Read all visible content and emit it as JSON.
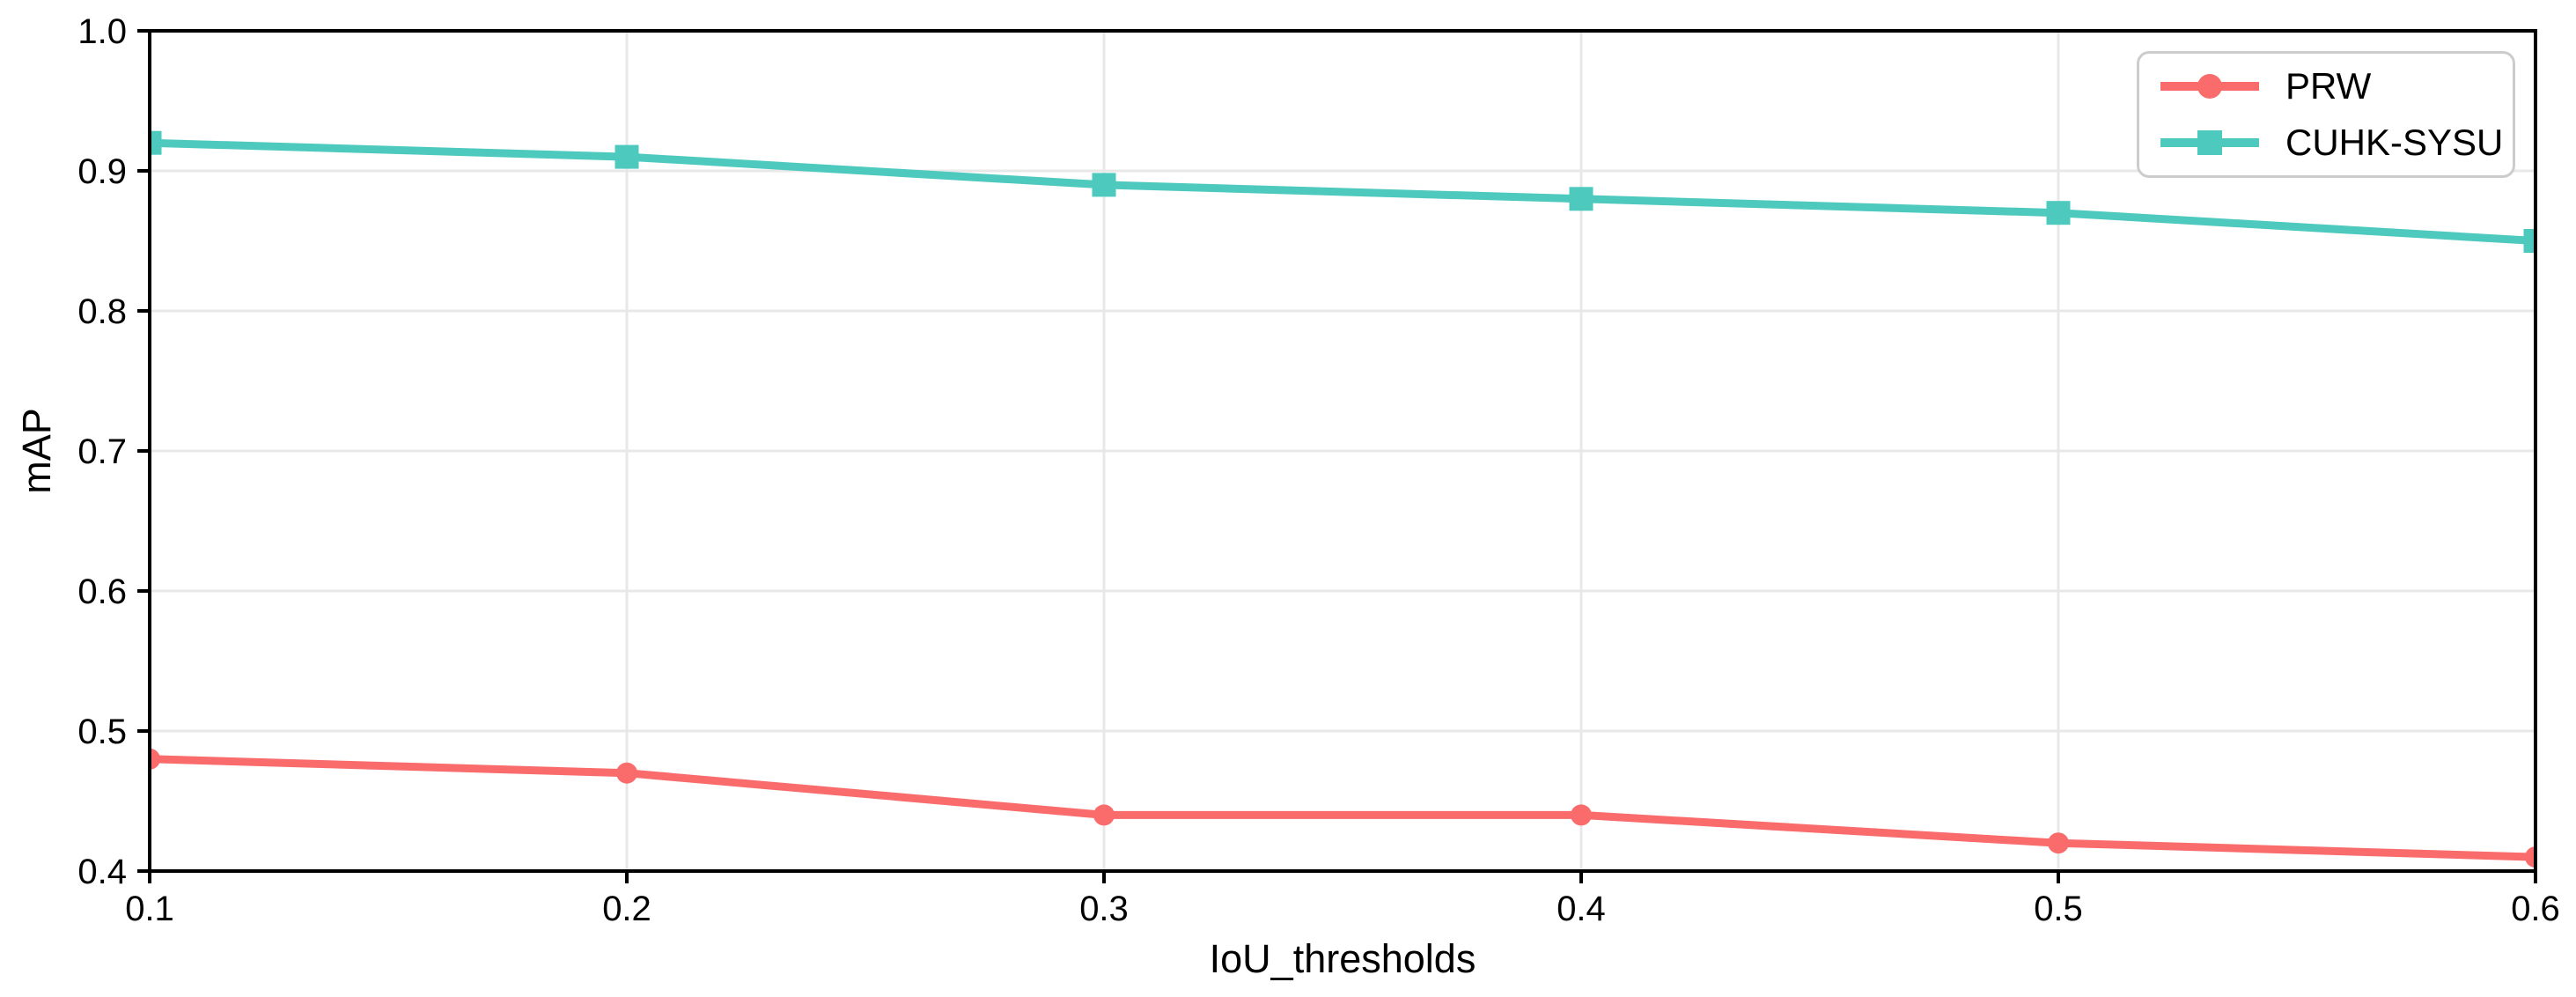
{
  "chart_data": {
    "type": "line",
    "title": "",
    "xlabel": "IoU_thresholds",
    "ylabel": "mAP",
    "x": [
      0.1,
      0.2,
      0.3,
      0.4,
      0.5,
      0.6
    ],
    "x_tick_labels": [
      "0.1",
      "0.2",
      "0.3",
      "0.4",
      "0.5",
      "0.6"
    ],
    "y_ticks": [
      0.4,
      0.5,
      0.6,
      0.7,
      0.8,
      0.9,
      1.0
    ],
    "y_tick_labels": [
      "0.4",
      "0.5",
      "0.6",
      "0.7",
      "0.8",
      "0.9",
      "1.0"
    ],
    "xlim": [
      0.1,
      0.6
    ],
    "ylim": [
      0.4,
      1.0
    ],
    "grid": true,
    "grid_color": "#e8e8e8",
    "axis_color": "#000000",
    "text_color": "#000000",
    "legend_position": "upper right",
    "legend_border_color": "#cccccc",
    "legend_background": "#ffffff",
    "series": [
      {
        "name": "PRW",
        "color": "#fa6b6b",
        "marker": "circle",
        "values": [
          0.48,
          0.47,
          0.44,
          0.44,
          0.42,
          0.41
        ]
      },
      {
        "name": "CUHK-SYSU",
        "color": "#4dc9be",
        "marker": "square",
        "values": [
          0.92,
          0.91,
          0.89,
          0.88,
          0.87,
          0.85
        ]
      }
    ]
  }
}
